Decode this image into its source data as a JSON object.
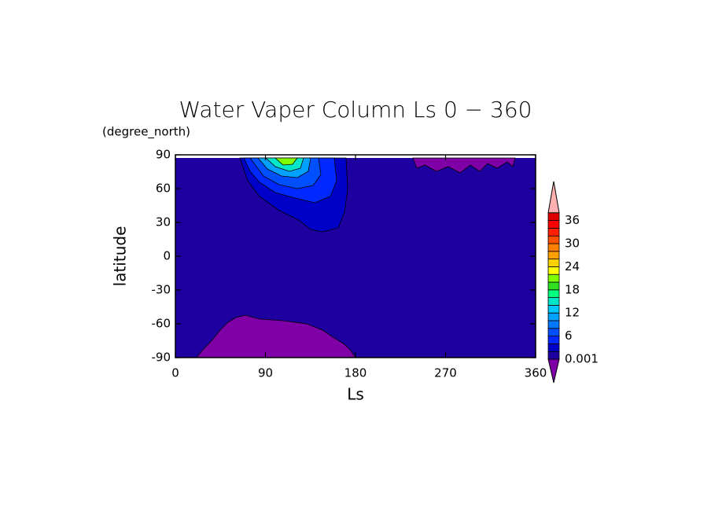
{
  "chart_data": {
    "type": "contour",
    "title": "Water Vaper Column Ls 0 − 360",
    "y_units": "(degree_north)",
    "ylabel": "latitude",
    "xlabel": "Ls",
    "xlim": [
      0,
      360
    ],
    "xticks": [
      0,
      90,
      180,
      270,
      360
    ],
    "ylim": [
      -90,
      90
    ],
    "yticks": [
      90,
      60,
      30,
      0,
      -30,
      -60,
      -90
    ],
    "colorbar_ticks": [
      0.001,
      6,
      12,
      18,
      24,
      30,
      36
    ],
    "colorbar_colors": [
      "#1e00a0",
      "#0000c8",
      "#0028ff",
      "#0050ff",
      "#0078ff",
      "#00a0ff",
      "#00c8ff",
      "#00e6c8",
      "#00ff80",
      "#30e020",
      "#80ff00",
      "#ffff00",
      "#ffd000",
      "#ffa000",
      "#ff8000",
      "#ff5000",
      "#ff2000",
      "#ff0000",
      "#e00000"
    ],
    "below_color": "#8000a8",
    "above_color": "#ffb0b0"
  }
}
